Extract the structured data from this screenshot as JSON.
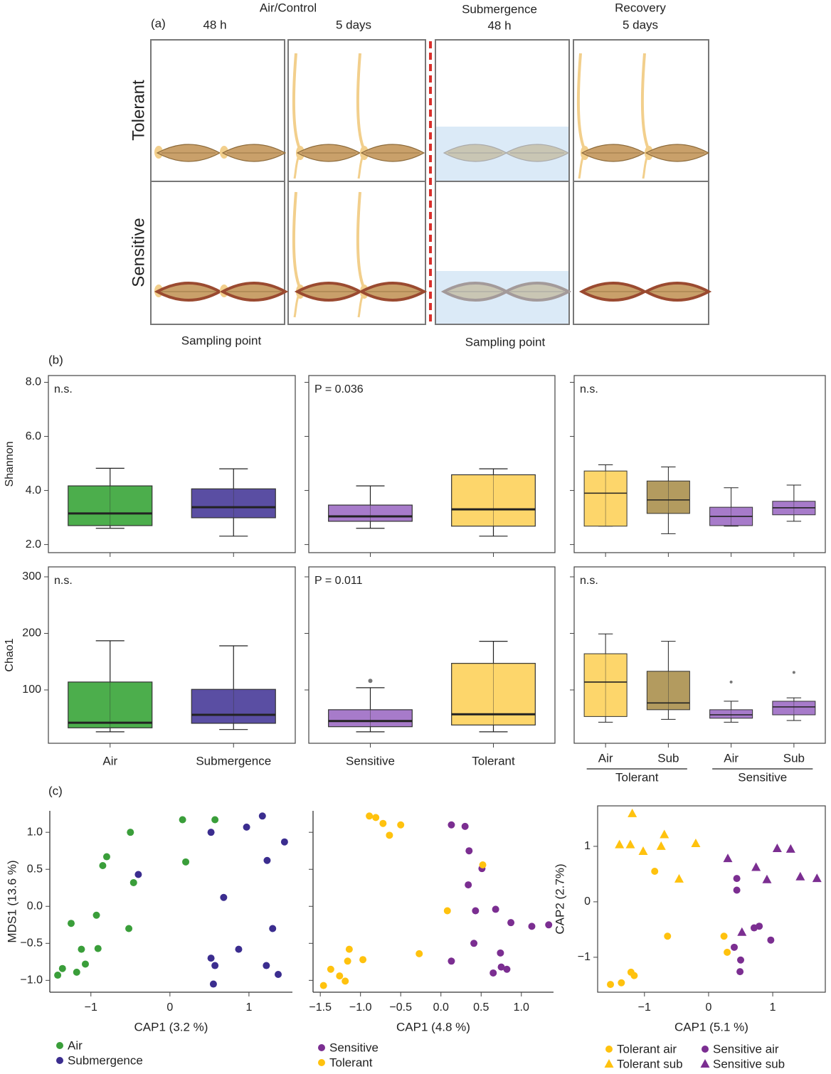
{
  "panel_labels": [
    "(a)",
    "(b)",
    "(c)"
  ],
  "diagram": {
    "col_groups": [
      "Air/Control",
      "Submergence",
      "Recovery"
    ],
    "times": [
      "48 h",
      "5 days",
      "48 h",
      "5 days"
    ],
    "rows": [
      "Tolerant",
      "Sensitive"
    ],
    "sampling": [
      "Sampling point",
      "Sampling point"
    ]
  },
  "chart_data": [
    {
      "type": "box",
      "ylabel": "Shannon",
      "annotation": "n.s.",
      "ylim": [
        1.7,
        8.25
      ],
      "yticks": [
        {
          "value": 2,
          "label": "2.0"
        },
        {
          "value": 4,
          "label": "4.0"
        },
        {
          "value": 6,
          "label": "6.0"
        },
        {
          "value": 8,
          "label": "8.0"
        }
      ],
      "boxes": [
        {
          "color": "#4cae4c",
          "whislo": 2.6,
          "q1": 2.7,
          "median": 3.15,
          "q3": 4.17,
          "whishi": 4.82,
          "fliers": []
        },
        {
          "color": "#5a4ea3",
          "whislo": 2.31,
          "q1": 2.99,
          "median": 3.38,
          "q3": 4.06,
          "whishi": 4.8,
          "fliers": []
        }
      ]
    },
    {
      "type": "box",
      "annotation": "P = 0.036",
      "ylim": [
        1.7,
        8.25
      ],
      "boxes": [
        {
          "color": "#a77bca",
          "whislo": 2.6,
          "q1": 2.86,
          "median": 3.04,
          "q3": 3.46,
          "whishi": 4.17,
          "fliers": []
        },
        {
          "color": "#fdd66b",
          "whislo": 2.31,
          "q1": 2.68,
          "median": 3.3,
          "q3": 4.58,
          "whishi": 4.8,
          "fliers": []
        }
      ]
    },
    {
      "type": "box",
      "annotation": "n.s.",
      "ylim": [
        1.7,
        8.25
      ],
      "boxes": [
        {
          "color": "#fdd66b",
          "whislo": 2.68,
          "q1": 2.68,
          "median": 3.9,
          "q3": 4.72,
          "whishi": 4.95,
          "fliers": []
        },
        {
          "color": "#b39b5f",
          "whislo": 2.4,
          "q1": 3.15,
          "median": 3.65,
          "q3": 4.35,
          "whishi": 4.87,
          "fliers": []
        },
        {
          "color": "#a77bca",
          "whislo": 2.68,
          "q1": 2.7,
          "median": 3.04,
          "q3": 3.38,
          "whishi": 4.1,
          "fliers": []
        },
        {
          "color": "#a77bca",
          "whislo": 2.86,
          "q1": 3.1,
          "median": 3.36,
          "q3": 3.6,
          "whishi": 4.2,
          "fliers": []
        }
      ]
    },
    {
      "type": "box",
      "ylabel": "Chao1",
      "annotation": "n.s.",
      "ylim": [
        5.7,
        317.6
      ],
      "yticks": [
        100,
        200,
        300
      ],
      "categories": [
        "Air",
        "Submergence"
      ],
      "boxes": [
        {
          "color": "#4cae4c",
          "whislo": 26,
          "q1": 33,
          "median": 42,
          "q3": 114,
          "whishi": 187,
          "fliers": []
        },
        {
          "color": "#5a4ea3",
          "whislo": 30,
          "q1": 41,
          "median": 56,
          "q3": 101,
          "whishi": 178,
          "fliers": []
        }
      ]
    },
    {
      "type": "box",
      "annotation": "P = 0.011",
      "ylim": [
        5.7,
        317.6
      ],
      "categories": [
        "Sensitive",
        "Tolerant"
      ],
      "boxes": [
        {
          "color": "#a77bca",
          "whislo": 26,
          "q1": 35,
          "median": 45,
          "q3": 65,
          "whishi": 104,
          "fliers": [
            116
          ]
        },
        {
          "color": "#fdd66b",
          "whislo": 26,
          "q1": 38,
          "median": 57,
          "q3": 147,
          "whishi": 186,
          "fliers": []
        }
      ]
    },
    {
      "type": "box",
      "annotation": "n.s.",
      "ylim": [
        5.7,
        317.6
      ],
      "categories": [
        "Air",
        "Sub",
        "Air",
        "Sub"
      ],
      "groups": [
        "Tolerant",
        "Sensitive"
      ],
      "boxes": [
        {
          "color": "#fdd66b",
          "whislo": 43,
          "q1": 53,
          "median": 114,
          "q3": 164,
          "whishi": 199,
          "fliers": []
        },
        {
          "color": "#b39b5f",
          "whislo": 48,
          "q1": 65,
          "median": 77,
          "q3": 133,
          "whishi": 186,
          "fliers": []
        },
        {
          "color": "#a77bca",
          "whislo": 43,
          "q1": 50,
          "median": 56,
          "q3": 65,
          "whishi": 80,
          "fliers": [
            114
          ]
        },
        {
          "color": "#a77bca",
          "whislo": 46,
          "q1": 56,
          "median": 70,
          "q3": 80,
          "whishi": 86,
          "fliers": [
            131
          ]
        }
      ]
    },
    {
      "type": "scatter",
      "xlabel": "CAP1 (3.2 %)",
      "ylabel": "MDS1 (13.6 %)",
      "xlim": [
        -1.52,
        1.55
      ],
      "ylim": [
        -1.16,
        1.29
      ],
      "xticks": [
        {
          "value": -1,
          "label": "−1"
        },
        0,
        1
      ],
      "yticks": [
        {
          "value": -1,
          "label": "−1.0"
        },
        {
          "value": -0.5,
          "label": "−0.5"
        },
        {
          "value": 0,
          "label": "0.0"
        },
        0.5,
        {
          "value": 1,
          "label": "1.0"
        }
      ],
      "series": [
        {
          "name": "Air",
          "color": "#3a9e3a",
          "marker": "circle",
          "x": [
            -0.5,
            -0.8,
            -0.85,
            -0.46,
            -0.93,
            -1.25,
            -0.52,
            -1.12,
            -0.91,
            -1.07,
            -1.18,
            -1.36,
            -1.42,
            0.16,
            0.57,
            0.2
          ],
          "y": [
            1.0,
            0.67,
            0.55,
            0.32,
            -0.12,
            -0.23,
            -0.3,
            -0.58,
            -0.57,
            -0.78,
            -0.89,
            -0.84,
            -0.93,
            1.17,
            1.17,
            0.6
          ]
        },
        {
          "name": "Submergence",
          "color": "#3b2d8f",
          "marker": "circle",
          "x": [
            -0.4,
            0.52,
            0.97,
            1.17,
            1.45,
            1.23,
            0.68,
            1.3,
            0.87,
            0.52,
            0.57,
            1.22,
            1.37,
            0.55
          ],
          "y": [
            0.43,
            1.0,
            1.07,
            1.22,
            0.87,
            0.62,
            0.12,
            -0.3,
            -0.58,
            -0.7,
            -0.8,
            -0.8,
            -0.92,
            -1.05
          ]
        }
      ]
    },
    {
      "type": "scatter",
      "xlabel": "CAP1 (4.8 %)",
      "xlim": [
        -1.59,
        1.4
      ],
      "ylim": [
        -1.16,
        1.29
      ],
      "xticks": [
        {
          "value": -1.5,
          "label": "−1.5"
        },
        {
          "value": -1,
          "label": "−1.0"
        },
        {
          "value": -0.5,
          "label": "−0.5"
        },
        {
          "value": 0,
          "label": "0.0"
        },
        0.5,
        {
          "value": 1,
          "label": "1.0"
        }
      ],
      "series": [
        {
          "name": "Sensitive",
          "color": "#7b2e91",
          "marker": "circle",
          "x": [
            0.13,
            0.3,
            0.35,
            0.51,
            0.34,
            0.43,
            0.68,
            0.87,
            1.13,
            1.34,
            0.41,
            0.74,
            0.13,
            0.75,
            0.65,
            0.82
          ],
          "y": [
            1.1,
            1.08,
            0.75,
            0.51,
            0.29,
            -0.06,
            -0.04,
            -0.22,
            -0.27,
            -0.25,
            -0.5,
            -0.63,
            -0.74,
            -0.82,
            -0.9,
            -0.85
          ]
        },
        {
          "name": "Tolerant",
          "color": "#ffc20e",
          "marker": "circle",
          "x": [
            -0.89,
            -0.81,
            -0.72,
            -0.5,
            -0.64,
            0.52,
            0.08,
            -1.14,
            -0.97,
            -0.27,
            -1.16,
            -1.37,
            -1.26,
            -1.19,
            -1.46
          ],
          "y": [
            1.22,
            1.2,
            1.12,
            1.1,
            0.96,
            0.56,
            -0.06,
            -0.58,
            -0.72,
            -0.64,
            -0.74,
            -0.85,
            -0.94,
            -1.01,
            -1.07
          ]
        }
      ]
    },
    {
      "type": "scatter",
      "xlabel": "CAP1 (5.1 %)",
      "ylabel": "CAP2 (2.7%)",
      "frame": true,
      "xlim": [
        -1.73,
        1.82
      ],
      "ylim": [
        -1.63,
        1.73
      ],
      "xticks": [
        {
          "value": -1,
          "label": "−1"
        },
        0,
        1
      ],
      "yticks": [
        {
          "value": -1,
          "label": "−1"
        },
        0,
        1
      ],
      "series": [
        {
          "name": "Tolerant air",
          "color": "#ffc20e",
          "marker": "circle",
          "x": [
            -0.84,
            -0.64,
            0.24,
            0.29,
            -1.53,
            -1.36,
            -1.21,
            -1.16
          ],
          "y": [
            0.55,
            -0.62,
            -0.62,
            -0.91,
            -1.49,
            -1.46,
            -1.27,
            -1.33
          ]
        },
        {
          "name": "Tolerant sub",
          "color": "#ffc20e",
          "marker": "triangle",
          "x": [
            -1.19,
            -1.39,
            -1.22,
            -1.02,
            -0.69,
            -0.74,
            -0.2,
            -0.46
          ],
          "y": [
            1.59,
            1.03,
            1.03,
            0.91,
            1.21,
            1.0,
            1.05,
            0.41
          ]
        },
        {
          "name": "Sensitive air",
          "color": "#7b2e91",
          "marker": "circle",
          "x": [
            0.44,
            0.44,
            0.4,
            0.71,
            0.79,
            0.97,
            0.5,
            0.49
          ],
          "y": [
            0.42,
            0.21,
            -0.82,
            -0.47,
            -0.44,
            -0.69,
            -1.05,
            -1.26
          ]
        },
        {
          "name": "Sensitive sub",
          "color": "#7b2e91",
          "marker": "triangle",
          "x": [
            0.3,
            0.74,
            0.91,
            1.07,
            1.28,
            1.43,
            1.69,
            0.52
          ],
          "y": [
            0.78,
            0.62,
            0.4,
            0.96,
            0.95,
            0.45,
            0.42,
            -0.55
          ]
        }
      ]
    }
  ]
}
